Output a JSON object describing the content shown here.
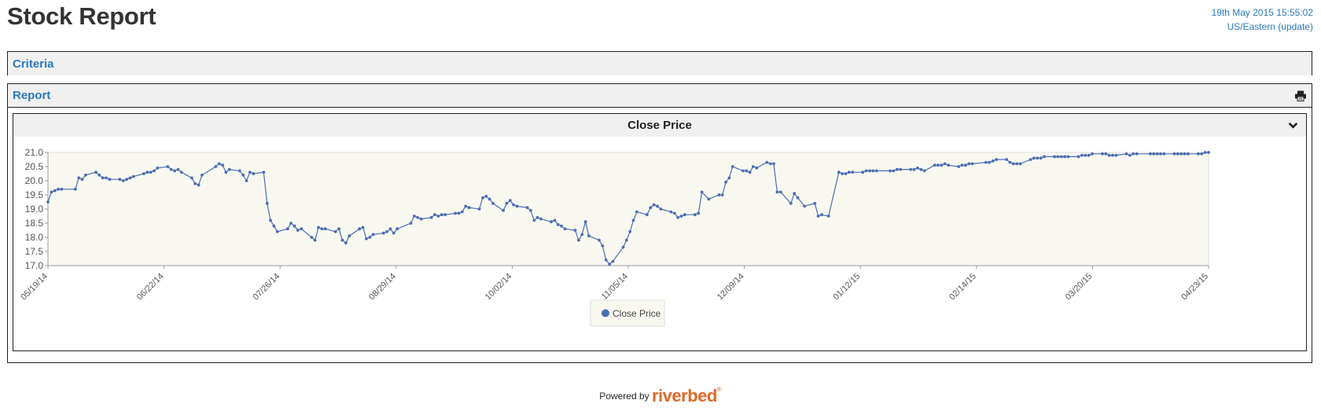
{
  "header": {
    "title": "Stock Report",
    "timestamp": "19th May 2015 15:55:02",
    "timezone_link": "US/Eastern (update)"
  },
  "criteria": {
    "label": "Criteria"
  },
  "report": {
    "label": "Report",
    "print_icon": "print-icon",
    "widget": {
      "title": "Close Price",
      "collapse_icon": "chevron-down-icon"
    }
  },
  "chart_data": {
    "type": "line",
    "title": "Close Price",
    "xlabel": "",
    "ylabel": "",
    "x_tick_labels": [
      "05/19/14",
      "06/22/14",
      "07/26/14",
      "08/29/14",
      "10/02/14",
      "11/05/14",
      "12/09/14",
      "01/12/15",
      "02/14/15",
      "03/20/15",
      "04/23/15"
    ],
    "y_ticks": [
      17.0,
      17.5,
      18.0,
      18.5,
      19.0,
      19.5,
      20.0,
      20.5,
      21.0
    ],
    "ylim": [
      17.0,
      21.0
    ],
    "xlim": [
      "2014-05-19",
      "2015-04-23"
    ],
    "grid": false,
    "legend": "bottom-center",
    "series_color": "#4a6db5",
    "series": [
      {
        "name": "Close Price",
        "points": [
          [
            "2014-05-19",
            19.25
          ],
          [
            "2014-05-20",
            19.6
          ],
          [
            "2014-05-21",
            19.65
          ],
          [
            "2014-05-22",
            19.7
          ],
          [
            "2014-05-23",
            19.7
          ],
          [
            "2014-05-27",
            19.7
          ],
          [
            "2014-05-28",
            20.1
          ],
          [
            "2014-05-29",
            20.05
          ],
          [
            "2014-05-30",
            20.2
          ],
          [
            "2014-06-02",
            20.3
          ],
          [
            "2014-06-03",
            20.2
          ],
          [
            "2014-06-04",
            20.1
          ],
          [
            "2014-06-05",
            20.1
          ],
          [
            "2014-06-06",
            20.05
          ],
          [
            "2014-06-09",
            20.05
          ],
          [
            "2014-06-10",
            20.0
          ],
          [
            "2014-06-11",
            20.05
          ],
          [
            "2014-06-12",
            20.1
          ],
          [
            "2014-06-13",
            20.15
          ],
          [
            "2014-06-16",
            20.25
          ],
          [
            "2014-06-17",
            20.3
          ],
          [
            "2014-06-18",
            20.3
          ],
          [
            "2014-06-19",
            20.35
          ],
          [
            "2014-06-20",
            20.45
          ],
          [
            "2014-06-23",
            20.5
          ],
          [
            "2014-06-24",
            20.4
          ],
          [
            "2014-06-25",
            20.35
          ],
          [
            "2014-06-26",
            20.4
          ],
          [
            "2014-06-27",
            20.3
          ],
          [
            "2014-06-30",
            20.1
          ],
          [
            "2014-07-01",
            19.9
          ],
          [
            "2014-07-02",
            19.85
          ],
          [
            "2014-07-03",
            20.2
          ],
          [
            "2014-07-07",
            20.5
          ],
          [
            "2014-07-08",
            20.6
          ],
          [
            "2014-07-09",
            20.55
          ],
          [
            "2014-07-10",
            20.3
          ],
          [
            "2014-07-11",
            20.4
          ],
          [
            "2014-07-14",
            20.35
          ],
          [
            "2014-07-15",
            20.2
          ],
          [
            "2014-07-16",
            20.0
          ],
          [
            "2014-07-17",
            20.3
          ],
          [
            "2014-07-18",
            20.25
          ],
          [
            "2014-07-21",
            20.3
          ],
          [
            "2014-07-22",
            19.2
          ],
          [
            "2014-07-23",
            18.6
          ],
          [
            "2014-07-24",
            18.4
          ],
          [
            "2014-07-25",
            18.2
          ],
          [
            "2014-07-28",
            18.3
          ],
          [
            "2014-07-29",
            18.5
          ],
          [
            "2014-07-30",
            18.4
          ],
          [
            "2014-07-31",
            18.25
          ],
          [
            "2014-08-01",
            18.3
          ],
          [
            "2014-08-04",
            18.0
          ],
          [
            "2014-08-05",
            17.9
          ],
          [
            "2014-08-06",
            18.35
          ],
          [
            "2014-08-07",
            18.3
          ],
          [
            "2014-08-08",
            18.3
          ],
          [
            "2014-08-11",
            18.2
          ],
          [
            "2014-08-12",
            18.3
          ],
          [
            "2014-08-13",
            17.9
          ],
          [
            "2014-08-14",
            17.8
          ],
          [
            "2014-08-15",
            18.05
          ],
          [
            "2014-08-18",
            18.3
          ],
          [
            "2014-08-19",
            18.35
          ],
          [
            "2014-08-20",
            17.95
          ],
          [
            "2014-08-21",
            18.0
          ],
          [
            "2014-08-22",
            18.1
          ],
          [
            "2014-08-25",
            18.15
          ],
          [
            "2014-08-26",
            18.2
          ],
          [
            "2014-08-27",
            18.3
          ],
          [
            "2014-08-28",
            18.15
          ],
          [
            "2014-08-29",
            18.3
          ],
          [
            "2014-09-02",
            18.5
          ],
          [
            "2014-09-03",
            18.75
          ],
          [
            "2014-09-04",
            18.7
          ],
          [
            "2014-09-05",
            18.65
          ],
          [
            "2014-09-08",
            18.7
          ],
          [
            "2014-09-09",
            18.8
          ],
          [
            "2014-09-10",
            18.75
          ],
          [
            "2014-09-11",
            18.8
          ],
          [
            "2014-09-12",
            18.8
          ],
          [
            "2014-09-15",
            18.85
          ],
          [
            "2014-09-16",
            18.85
          ],
          [
            "2014-09-17",
            18.9
          ],
          [
            "2014-09-18",
            19.1
          ],
          [
            "2014-09-19",
            19.05
          ],
          [
            "2014-09-22",
            19.0
          ],
          [
            "2014-09-23",
            19.4
          ],
          [
            "2014-09-24",
            19.45
          ],
          [
            "2014-09-25",
            19.35
          ],
          [
            "2014-09-26",
            19.2
          ],
          [
            "2014-09-29",
            18.95
          ],
          [
            "2014-09-30",
            19.2
          ],
          [
            "2014-10-01",
            19.3
          ],
          [
            "2014-10-02",
            19.15
          ],
          [
            "2014-10-03",
            19.1
          ],
          [
            "2014-10-06",
            19.05
          ],
          [
            "2014-10-07",
            18.95
          ],
          [
            "2014-10-08",
            18.6
          ],
          [
            "2014-10-09",
            18.7
          ],
          [
            "2014-10-10",
            18.65
          ],
          [
            "2014-10-13",
            18.55
          ],
          [
            "2014-10-14",
            18.6
          ],
          [
            "2014-10-15",
            18.45
          ],
          [
            "2014-10-16",
            18.4
          ],
          [
            "2014-10-17",
            18.3
          ],
          [
            "2014-10-20",
            18.25
          ],
          [
            "2014-10-21",
            17.9
          ],
          [
            "2014-10-22",
            18.1
          ],
          [
            "2014-10-23",
            18.55
          ],
          [
            "2014-10-24",
            18.05
          ],
          [
            "2014-10-27",
            17.9
          ],
          [
            "2014-10-28",
            17.7
          ],
          [
            "2014-10-29",
            17.2
          ],
          [
            "2014-10-30",
            17.05
          ],
          [
            "2014-10-31",
            17.15
          ],
          [
            "2014-11-03",
            17.65
          ],
          [
            "2014-11-04",
            17.9
          ],
          [
            "2014-11-05",
            18.2
          ],
          [
            "2014-11-06",
            18.6
          ],
          [
            "2014-11-07",
            18.9
          ],
          [
            "2014-11-10",
            18.8
          ],
          [
            "2014-11-11",
            19.05
          ],
          [
            "2014-11-12",
            19.15
          ],
          [
            "2014-11-13",
            19.1
          ],
          [
            "2014-11-14",
            19.0
          ],
          [
            "2014-11-17",
            18.9
          ],
          [
            "2014-11-18",
            18.85
          ],
          [
            "2014-11-19",
            18.7
          ],
          [
            "2014-11-20",
            18.75
          ],
          [
            "2014-11-21",
            18.8
          ],
          [
            "2014-11-24",
            18.8
          ],
          [
            "2014-11-25",
            18.85
          ],
          [
            "2014-11-26",
            19.6
          ],
          [
            "2014-11-28",
            19.35
          ],
          [
            "2014-12-01",
            19.5
          ],
          [
            "2014-12-02",
            19.5
          ],
          [
            "2014-12-03",
            19.95
          ],
          [
            "2014-12-04",
            20.1
          ],
          [
            "2014-12-05",
            20.5
          ],
          [
            "2014-12-08",
            20.35
          ],
          [
            "2014-12-09",
            20.35
          ],
          [
            "2014-12-10",
            20.3
          ],
          [
            "2014-12-11",
            20.5
          ],
          [
            "2014-12-12",
            20.45
          ],
          [
            "2014-12-15",
            20.65
          ],
          [
            "2014-12-16",
            20.6
          ],
          [
            "2014-12-17",
            20.6
          ],
          [
            "2014-12-18",
            19.6
          ],
          [
            "2014-12-19",
            19.6
          ],
          [
            "2014-12-22",
            19.2
          ],
          [
            "2014-12-23",
            19.55
          ],
          [
            "2014-12-24",
            19.4
          ],
          [
            "2014-12-26",
            19.1
          ],
          [
            "2014-12-29",
            19.2
          ],
          [
            "2014-12-30",
            18.75
          ],
          [
            "2014-12-31",
            18.8
          ],
          [
            "2015-01-02",
            18.75
          ],
          [
            "2015-01-05",
            20.3
          ],
          [
            "2015-01-06",
            20.25
          ],
          [
            "2015-01-07",
            20.25
          ],
          [
            "2015-01-08",
            20.3
          ],
          [
            "2015-01-09",
            20.3
          ],
          [
            "2015-01-12",
            20.3
          ],
          [
            "2015-01-13",
            20.35
          ],
          [
            "2015-01-14",
            20.35
          ],
          [
            "2015-01-15",
            20.35
          ],
          [
            "2015-01-16",
            20.35
          ],
          [
            "2015-01-20",
            20.35
          ],
          [
            "2015-01-21",
            20.35
          ],
          [
            "2015-01-22",
            20.4
          ],
          [
            "2015-01-23",
            20.4
          ],
          [
            "2015-01-26",
            20.4
          ],
          [
            "2015-01-27",
            20.4
          ],
          [
            "2015-01-28",
            20.45
          ],
          [
            "2015-01-29",
            20.4
          ],
          [
            "2015-01-30",
            20.35
          ],
          [
            "2015-02-02",
            20.55
          ],
          [
            "2015-02-03",
            20.55
          ],
          [
            "2015-02-04",
            20.55
          ],
          [
            "2015-02-05",
            20.6
          ],
          [
            "2015-02-06",
            20.55
          ],
          [
            "2015-02-09",
            20.5
          ],
          [
            "2015-02-10",
            20.55
          ],
          [
            "2015-02-11",
            20.55
          ],
          [
            "2015-02-12",
            20.6
          ],
          [
            "2015-02-13",
            20.6
          ],
          [
            "2015-02-17",
            20.65
          ],
          [
            "2015-02-18",
            20.65
          ],
          [
            "2015-02-19",
            20.7
          ],
          [
            "2015-02-20",
            20.75
          ],
          [
            "2015-02-23",
            20.75
          ],
          [
            "2015-02-24",
            20.65
          ],
          [
            "2015-02-25",
            20.6
          ],
          [
            "2015-02-26",
            20.6
          ],
          [
            "2015-02-27",
            20.6
          ],
          [
            "2015-03-02",
            20.75
          ],
          [
            "2015-03-03",
            20.8
          ],
          [
            "2015-03-04",
            20.8
          ],
          [
            "2015-03-05",
            20.8
          ],
          [
            "2015-03-06",
            20.85
          ],
          [
            "2015-03-09",
            20.85
          ],
          [
            "2015-03-10",
            20.85
          ],
          [
            "2015-03-11",
            20.85
          ],
          [
            "2015-03-12",
            20.85
          ],
          [
            "2015-03-13",
            20.85
          ],
          [
            "2015-03-16",
            20.85
          ],
          [
            "2015-03-17",
            20.9
          ],
          [
            "2015-03-18",
            20.9
          ],
          [
            "2015-03-19",
            20.9
          ],
          [
            "2015-03-20",
            20.95
          ],
          [
            "2015-03-23",
            20.95
          ],
          [
            "2015-03-24",
            20.95
          ],
          [
            "2015-03-25",
            20.9
          ],
          [
            "2015-03-26",
            20.9
          ],
          [
            "2015-03-27",
            20.9
          ],
          [
            "2015-03-30",
            20.95
          ],
          [
            "2015-03-31",
            20.9
          ],
          [
            "2015-04-01",
            20.95
          ],
          [
            "2015-04-02",
            20.95
          ],
          [
            "2015-04-06",
            20.95
          ],
          [
            "2015-04-07",
            20.95
          ],
          [
            "2015-04-08",
            20.95
          ],
          [
            "2015-04-09",
            20.95
          ],
          [
            "2015-04-10",
            20.95
          ],
          [
            "2015-04-13",
            20.95
          ],
          [
            "2015-04-14",
            20.95
          ],
          [
            "2015-04-15",
            20.95
          ],
          [
            "2015-04-16",
            20.95
          ],
          [
            "2015-04-17",
            20.95
          ],
          [
            "2015-04-20",
            20.95
          ],
          [
            "2015-04-21",
            20.95
          ],
          [
            "2015-04-22",
            21.0
          ],
          [
            "2015-04-23",
            21.0
          ]
        ]
      }
    ]
  },
  "footer": {
    "powered_by": "Powered by",
    "brand": "riverbed",
    "reg_mark": "®"
  }
}
